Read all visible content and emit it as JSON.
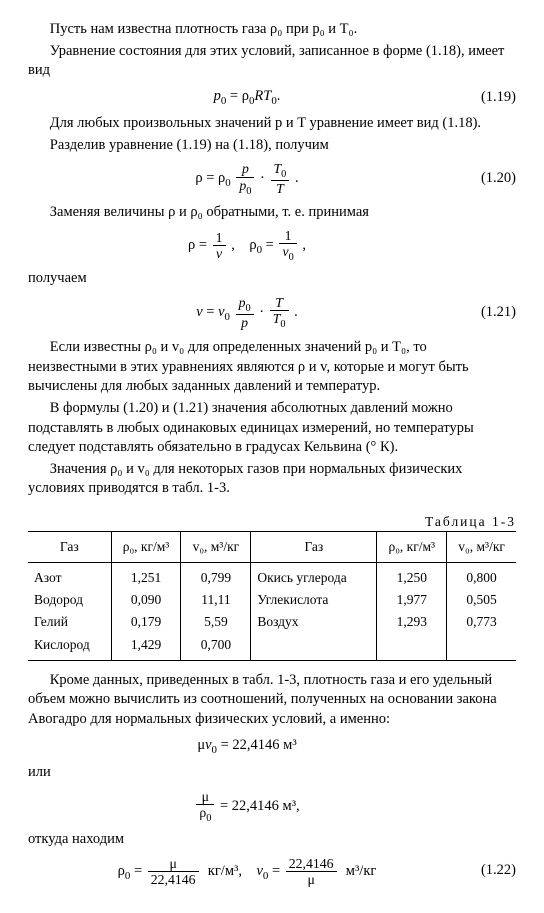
{
  "paragraphs": {
    "p1": "Пусть нам известна плотность газа ρ₀ при p₀ и T₀.",
    "p2": "Уравнение состояния для этих условий, записанное в форме (1.18), имеет вид",
    "p3": "Для любых произвольных значений p и T уравнение имеет вид (1.18).",
    "p4": "Разделив уравнение (1.19) на (1.18), получим",
    "p5": "Заменяя величины ρ и ρ₀ обратными, т. е. принимая",
    "p6": "получаем",
    "p7": "Если известны ρ₀ и v₀ для определенных значений p₀ и T₀, то неизвестными в этих уравнениях являются ρ и v, которые и могут быть вычислены для любых заданных давлений и температур.",
    "p8": "В формулы (1.20) и (1.21) значения абсолютных давлений можно подставлять в любых одинаковых единицах измерений, но температуры следует подставлять обязательно в градусах Кельвина (° К).",
    "p9": "Значения ρ₀ и v₀ для некоторых газов при нормальных физических условиях приводятся в табл. 1-3.",
    "p10": "Кроме данных, приведенных в табл. 1-3, плотность газа и его удельный объем можно вычислить из соотношений, полученных на основании закона Авогадро для нормальных физических условий, а именно:",
    "p11": "или",
    "p12": "откуда находим"
  },
  "equations": {
    "eq119": {
      "num": "(1.19)"
    },
    "eq120": {
      "num": "(1.20)"
    },
    "eq121": {
      "num": "(1.21)"
    },
    "eq122": {
      "num": "(1.22)"
    },
    "avogadro1_rhs": "= 22,4146  м³",
    "avogadro2_rhs": "= 22,4146  м³,",
    "kg_unit": "кг/м³,",
    "m3kg_unit": "м³/кг"
  },
  "table": {
    "caption": "Таблица 1-3",
    "headers": {
      "gas": "Газ",
      "rho": "ρ₀, кг/м³",
      "v": "v₀, м³/кг"
    },
    "left_rows": [
      {
        "gas": "Азот",
        "rho": "1,251",
        "v": "0,799"
      },
      {
        "gas": "Водород",
        "rho": "0,090",
        "v": "11,11"
      },
      {
        "gas": "Гелий",
        "rho": "0,179",
        "v": "5,59"
      },
      {
        "gas": "Кислород",
        "rho": "1,429",
        "v": "0,700"
      }
    ],
    "right_rows": [
      {
        "gas": "Окись углерода",
        "rho": "1,250",
        "v": "0,800"
      },
      {
        "gas": "Углекислота",
        "rho": "1,977",
        "v": "0,505"
      },
      {
        "gas": "Воздух",
        "rho": "1,293",
        "v": "0,773"
      },
      {
        "gas": "",
        "rho": "",
        "v": ""
      }
    ]
  }
}
